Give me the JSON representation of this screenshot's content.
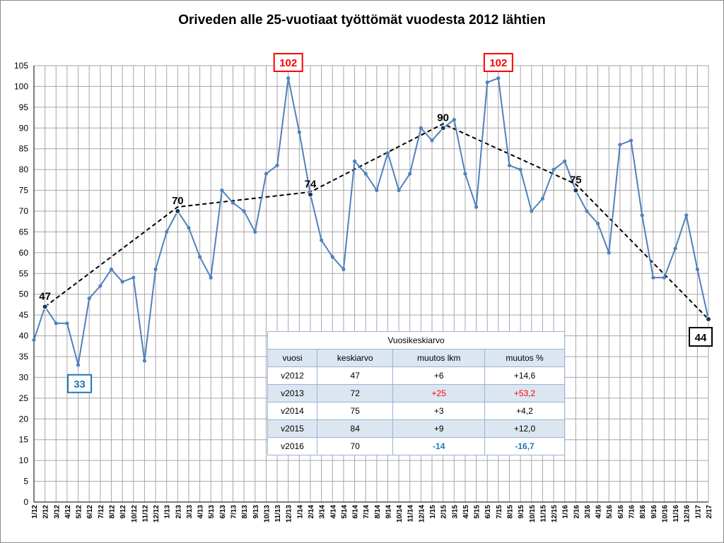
{
  "title": "Oriveden alle 25-vuotiaat työttömät vuodesta 2012 lähtien",
  "colors": {
    "series": "#4f81bd",
    "trend": "#000000",
    "max_box": "#ff0000",
    "min_box": "#1f78b4",
    "last_box": "#000000",
    "grid": "#a6a6a6"
  },
  "chart_data": {
    "type": "line",
    "title": "Oriveden alle 25-vuotiaat työttömät vuodesta 2012 lähtien",
    "xlabel": "",
    "ylabel": "",
    "ylim": [
      0,
      105
    ],
    "y_ticks": [
      0,
      5,
      10,
      15,
      20,
      25,
      30,
      35,
      40,
      45,
      50,
      55,
      60,
      65,
      70,
      75,
      80,
      85,
      90,
      95,
      100,
      105
    ],
    "grid": true,
    "categories": [
      "1/12",
      "2/12",
      "3/12",
      "4/12",
      "5/12",
      "6/12",
      "7/12",
      "8/12",
      "9/12",
      "10/12",
      "11/12",
      "12/12",
      "1/13",
      "2/13",
      "3/13",
      "4/13",
      "5/13",
      "6/13",
      "7/13",
      "8/13",
      "9/13",
      "10/13",
      "11/13",
      "12/13",
      "1/14",
      "2/14",
      "3/14",
      "4/14",
      "5/14",
      "6/14",
      "7/14",
      "8/14",
      "9/14",
      "10/14",
      "11/14",
      "12/14",
      "1/15",
      "2/15",
      "3/15",
      "4/15",
      "5/15",
      "6/15",
      "7/15",
      "8/15",
      "9/15",
      "10/15",
      "11/15",
      "12/15",
      "1/16",
      "2/16",
      "3/16",
      "4/16",
      "5/16",
      "6/16",
      "7/16",
      "8/16",
      "9/16",
      "10/16",
      "11/16",
      "12/16",
      "1/17",
      "2/17"
    ],
    "series": [
      {
        "values": [
          39,
          47,
          43,
          43,
          33,
          49,
          52,
          56,
          53,
          54,
          34,
          56,
          65,
          70,
          66,
          59,
          54,
          75,
          72,
          70,
          65,
          79,
          81,
          102,
          89,
          74,
          63,
          59,
          56,
          82,
          79,
          75,
          84,
          75,
          79,
          90,
          87,
          90,
          92,
          79,
          71,
          101,
          102,
          81,
          80,
          70,
          73,
          80,
          82,
          75,
          70,
          67,
          60,
          86,
          87,
          69,
          54,
          54,
          61,
          69,
          56,
          44
        ]
      },
      {
        "values": [
          null,
          47,
          null,
          null,
          null,
          null,
          null,
          null,
          null,
          null,
          null,
          null,
          null,
          71,
          null,
          null,
          null,
          null,
          null,
          null,
          null,
          null,
          null,
          null,
          null,
          74.6,
          null,
          null,
          null,
          null,
          null,
          null,
          null,
          null,
          null,
          null,
          null,
          91,
          null,
          null,
          null,
          null,
          null,
          null,
          null,
          null,
          null,
          null,
          null,
          76.5,
          null,
          null,
          null,
          null,
          null,
          null,
          null,
          null,
          null,
          null,
          null,
          44
        ]
      }
    ],
    "annotations": [
      {
        "text": "47",
        "category": "2/12",
        "value": 47,
        "style": "plain"
      },
      {
        "text": "33",
        "category": "5/12",
        "value": 33,
        "style": "min-box"
      },
      {
        "text": "70",
        "category": "2/13",
        "value": 70,
        "style": "plain"
      },
      {
        "text": "102",
        "category": "12/13",
        "value": 102,
        "style": "max-box"
      },
      {
        "text": "74",
        "category": "2/14",
        "value": 74,
        "style": "plain"
      },
      {
        "text": "90",
        "category": "2/15",
        "value": 90,
        "style": "plain"
      },
      {
        "text": "102",
        "category": "7/15",
        "value": 102,
        "style": "max-box"
      },
      {
        "text": "75",
        "category": "2/16",
        "value": 75,
        "style": "plain"
      },
      {
        "text": "44",
        "category": "2/17",
        "value": 44,
        "style": "last-box"
      }
    ]
  },
  "table": {
    "caption": "Vuosikeskiarvo",
    "headers": [
      "vuosi",
      "keskiarvo",
      "muutos lkm",
      "muutos %"
    ],
    "rows": [
      [
        "v2012",
        "47",
        "+6",
        "+14,6"
      ],
      [
        "v2013",
        "72",
        "+25",
        "+53,2"
      ],
      [
        "v2014",
        "75",
        "+3",
        "+4,2"
      ],
      [
        "v2015",
        "84",
        "+9",
        "+12,0"
      ],
      [
        "v2016",
        "70",
        "-14",
        "-16,7"
      ]
    ]
  }
}
